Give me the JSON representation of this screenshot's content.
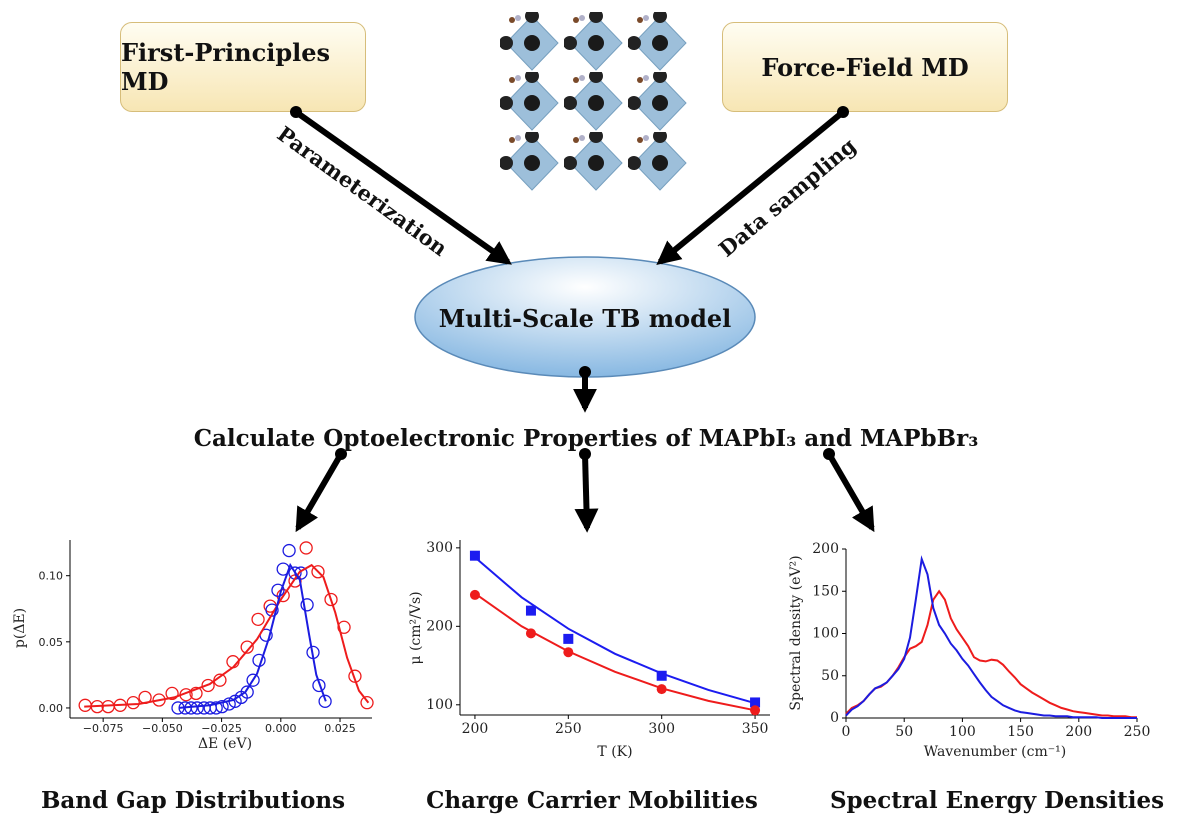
{
  "nodes": {
    "first_principles": "First-Principles MD",
    "force_field": "Force-Field MD",
    "tb_model": "Multi-Scale TB model"
  },
  "edges": {
    "parameterization": "Parameterization",
    "data_sampling": "Data sampling"
  },
  "calculate": "Calculate Optoelectronic Properties of MAPbI₃ and MAPbBr₃",
  "chart_data": [
    {
      "type": "scatter",
      "title": "Band Gap Distributions",
      "x_label": "ΔE (eV)",
      "y_label": "p(ΔE)",
      "xlim": [
        -0.089,
        0.0385
      ],
      "ylim": [
        -0.0076,
        0.127
      ],
      "xticks": [
        {
          "value": -0.075,
          "label": "−0.075"
        },
        {
          "value": -0.05,
          "label": "−0.050"
        },
        {
          "value": -0.025,
          "label": "−0.025"
        },
        {
          "value": 0,
          "label": "0.000"
        },
        {
          "value": 0.025,
          "label": "0.025"
        }
      ],
      "yticks": [
        {
          "value": 0,
          "label": "0.00"
        },
        {
          "value": 0.05,
          "label": "0.05"
        },
        {
          "value": 0.1,
          "label": "0.10"
        }
      ],
      "series": [
        {
          "color": "#ee1c1c",
          "marker": "open-circle",
          "x": [
            -0.0826,
            -0.0775,
            -0.0729,
            -0.0678,
            -0.0623,
            -0.0573,
            -0.0514,
            -0.0459,
            -0.04,
            -0.0358,
            -0.0307,
            -0.0257,
            -0.0202,
            -0.0142,
            -0.0096,
            -0.0045,
            0.001,
            0.006,
            0.0107,
            0.0157,
            0.0212,
            0.0267,
            0.0313,
            0.0364
          ],
          "values": [
            0.002,
            0.001,
            0.001,
            0.002,
            0.004,
            0.008,
            0.006,
            0.011,
            0.01,
            0.011,
            0.017,
            0.021,
            0.035,
            0.046,
            0.067,
            0.077,
            0.085,
            0.096,
            0.121,
            0.103,
            0.082,
            0.061,
            0.024,
            0.004
          ]
        },
        {
          "color": "#1c1ce0",
          "marker": "open-circle",
          "x": [
            -0.0434,
            -0.0404,
            -0.0379,
            -0.0353,
            -0.0324,
            -0.0298,
            -0.0273,
            -0.0248,
            -0.0218,
            -0.0193,
            -0.0167,
            -0.0142,
            -0.0117,
            -0.0092,
            -0.0062,
            -0.0037,
            -0.0012,
            0.001,
            0.0035,
            0.006,
            0.0085,
            0.0111,
            0.0136,
            0.0161,
            0.0187
          ],
          "values": [
            0,
            0,
            0,
            0,
            0,
            0,
            0,
            0.001,
            0.003,
            0.005,
            0.008,
            0.012,
            0.021,
            0.036,
            0.055,
            0.074,
            0.089,
            0.105,
            0.119,
            0.102,
            0.102,
            0.078,
            0.042,
            0.017,
            0.005
          ]
        },
        {
          "color": "#ee1c1c",
          "style": "line",
          "x": [
            -0.083,
            -0.06,
            -0.045,
            -0.03,
            -0.02,
            -0.01,
            0,
            0.008,
            0.013,
            0.018,
            0.023,
            0.028,
            0.033,
            0.037
          ],
          "values": [
            0.001,
            0.003,
            0.008,
            0.018,
            0.031,
            0.052,
            0.082,
            0.103,
            0.108,
            0.099,
            0.072,
            0.038,
            0.013,
            0.004
          ]
        },
        {
          "color": "#1c1ce0",
          "style": "line",
          "x": [
            -0.043,
            -0.03,
            -0.02,
            -0.015,
            -0.01,
            -0.005,
            0,
            0.004,
            0.008,
            0.012,
            0.015,
            0.019
          ],
          "values": [
            0,
            0.002,
            0.006,
            0.012,
            0.026,
            0.053,
            0.088,
            0.108,
            0.097,
            0.055,
            0.025,
            0.005
          ]
        }
      ]
    },
    {
      "type": "scatter",
      "title": "Charge Carrier Mobilities",
      "x_label": "T (K)",
      "y_label": "μ (cm²/Vs)",
      "xlim": [
        192,
        358
      ],
      "ylim": [
        87,
        310
      ],
      "xticks": [
        200,
        250,
        300,
        350
      ],
      "yticks": [
        100,
        200,
        300
      ],
      "series": [
        {
          "color": "#1c1cf0",
          "marker": "square",
          "x": [
            200,
            230,
            250,
            300,
            350
          ],
          "values": [
            290,
            220,
            184,
            137,
            103
          ]
        },
        {
          "color": "#ee1c1c",
          "marker": "circle",
          "x": [
            200,
            230,
            250,
            300,
            350
          ],
          "values": [
            240,
            191,
            167,
            120,
            93
          ]
        },
        {
          "color": "#1c1cf0",
          "style": "line",
          "x": [
            200,
            225,
            250,
            275,
            300,
            325,
            350
          ],
          "values": [
            288,
            237,
            197,
            165,
            140,
            119,
            102
          ]
        },
        {
          "color": "#ee1c1c",
          "style": "line",
          "x": [
            200,
            225,
            250,
            275,
            300,
            325,
            350
          ],
          "values": [
            242,
            200,
            168,
            142,
            121,
            105,
            93
          ]
        }
      ]
    },
    {
      "type": "line",
      "title": "Spectral Energy Densities",
      "x_label": "Wavenumber (cm⁻¹)",
      "y_label": "Spectral density (eV²)",
      "xlim": [
        0,
        250
      ],
      "ylim": [
        0,
        200
      ],
      "xticks": [
        0,
        50,
        100,
        150,
        200,
        250
      ],
      "yticks": [
        0,
        50,
        100,
        150,
        200
      ],
      "x": [
        0,
        5,
        10,
        15,
        20,
        25,
        30,
        35,
        40,
        45,
        50,
        55,
        60,
        65,
        70,
        75,
        80,
        85,
        90,
        95,
        100,
        105,
        110,
        115,
        120,
        125,
        130,
        135,
        140,
        145,
        150,
        155,
        160,
        165,
        170,
        175,
        180,
        185,
        190,
        195,
        200,
        205,
        210,
        215,
        220,
        225,
        230,
        235,
        240,
        245,
        250
      ],
      "series": [
        {
          "color": "#ee1c1c",
          "values": [
            5,
            12,
            15,
            20,
            28,
            35,
            37,
            42,
            50,
            60,
            72,
            82,
            85,
            90,
            110,
            140,
            150,
            140,
            118,
            105,
            95,
            85,
            72,
            68,
            67,
            69,
            68,
            63,
            55,
            48,
            40,
            35,
            30,
            26,
            22,
            18,
            15,
            12,
            10,
            8,
            7,
            6,
            5,
            4,
            3,
            3,
            2,
            2,
            2,
            1,
            1
          ]
        },
        {
          "color": "#1c1ce0",
          "values": [
            3,
            10,
            14,
            20,
            28,
            35,
            38,
            42,
            50,
            58,
            70,
            95,
            140,
            188,
            170,
            130,
            110,
            100,
            88,
            80,
            70,
            62,
            52,
            42,
            33,
            25,
            20,
            15,
            12,
            9,
            7,
            6,
            5,
            4,
            3,
            3,
            2,
            2,
            2,
            1,
            1,
            1,
            1,
            1,
            0,
            0,
            0,
            0,
            0,
            0,
            0
          ]
        }
      ]
    }
  ]
}
